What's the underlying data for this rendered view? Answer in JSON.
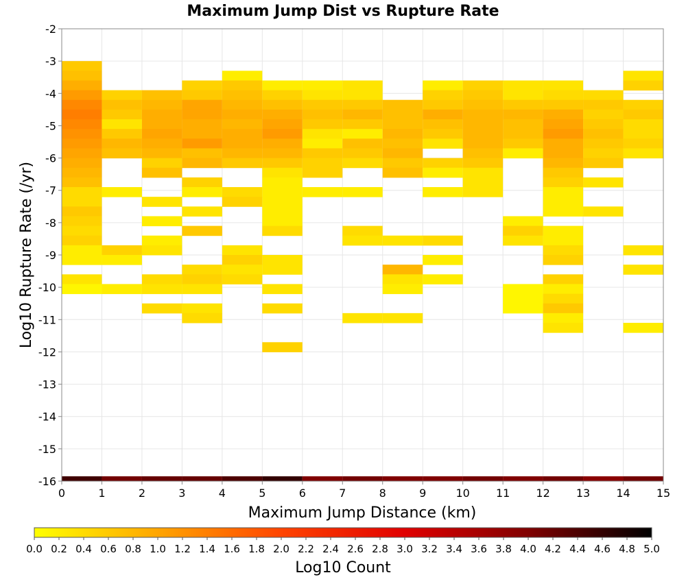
{
  "chart_data": {
    "type": "heatmap",
    "title": "Maximum Jump Dist vs Rupture Rate",
    "xlabel": "Maximum Jump Distance (km)",
    "ylabel": "Log10 Rupture Rate (/yr)",
    "xlim": [
      0,
      15
    ],
    "ylim": [
      -16,
      -2
    ],
    "x_ticks": [
      "0",
      "1",
      "2",
      "3",
      "4",
      "5",
      "6",
      "7",
      "8",
      "9",
      "10",
      "11",
      "12",
      "13",
      "14",
      "15"
    ],
    "y_ticks": [
      "-2",
      "-3",
      "-4",
      "-5",
      "-6",
      "-7",
      "-8",
      "-9",
      "-10",
      "-11",
      "-12",
      "-13",
      "-14",
      "-15",
      "-16"
    ],
    "x_bin_width": 1,
    "y_bin_height": 0.3,
    "grid": true,
    "colorbar": {
      "label": "Log10 Count",
      "range": [
        0,
        5
      ],
      "ticks": [
        "0.0",
        "0.2",
        "0.4",
        "0.6",
        "0.8",
        "1.0",
        "1.2",
        "1.4",
        "1.6",
        "1.8",
        "2.0",
        "2.2",
        "2.4",
        "2.6",
        "2.8",
        "3.0",
        "3.2",
        "3.4",
        "3.6",
        "3.8",
        "4.0",
        "4.2",
        "4.4",
        "4.6",
        "4.8",
        "5.0"
      ],
      "colors": [
        "#ffff00",
        "#ffa500",
        "#ff4400",
        "#e00000",
        "#800000",
        "#000000"
      ]
    },
    "bottom_row": {
      "y": -16,
      "values": [
        4.5,
        4.1,
        4.2,
        4.2,
        4.4,
        4.6,
        4.0,
        4.1,
        4.0,
        4.0,
        4.1,
        4.0,
        4.1,
        3.9,
        4.1
      ]
    },
    "columns": [
      {
        "x": [
          0,
          1
        ],
        "cells": [
          [
            -3.0,
            0.6
          ],
          [
            -3.3,
            0.7
          ],
          [
            -3.6,
            0.9
          ],
          [
            -3.9,
            1.1
          ],
          [
            -4.2,
            1.3
          ],
          [
            -4.5,
            1.4
          ],
          [
            -4.8,
            1.3
          ],
          [
            -5.1,
            1.2
          ],
          [
            -5.4,
            1.1
          ],
          [
            -5.7,
            1.0
          ],
          [
            -6.0,
            0.9
          ],
          [
            -6.3,
            0.8
          ],
          [
            -6.6,
            0.7
          ],
          [
            -6.9,
            0.4
          ],
          [
            -7.2,
            0.4
          ],
          [
            -7.5,
            0.6
          ],
          [
            -7.8,
            0.5
          ],
          [
            -8.1,
            0.4
          ],
          [
            -8.4,
            0.5
          ],
          [
            -8.7,
            0.2
          ],
          [
            -9.0,
            0.2
          ],
          [
            -9.6,
            0.3
          ],
          [
            -9.9,
            0.1
          ]
        ]
      },
      {
        "x": [
          1,
          2
        ],
        "cells": [
          [
            -3.9,
            0.5
          ],
          [
            -4.2,
            0.7
          ],
          [
            -4.5,
            0.6
          ],
          [
            -4.8,
            0.3
          ],
          [
            -5.1,
            0.6
          ],
          [
            -5.4,
            0.8
          ],
          [
            -5.7,
            0.7
          ],
          [
            -6.9,
            0.2
          ],
          [
            -8.7,
            0.5
          ],
          [
            -9.0,
            0.2
          ],
          [
            -9.9,
            0.2
          ]
        ]
      },
      {
        "x": [
          2,
          3
        ],
        "cells": [
          [
            -3.9,
            0.7
          ],
          [
            -4.2,
            0.8
          ],
          [
            -4.5,
            0.9
          ],
          [
            -4.8,
            0.9
          ],
          [
            -5.1,
            1.0
          ],
          [
            -5.4,
            0.9
          ],
          [
            -5.7,
            0.8
          ],
          [
            -6.0,
            0.5
          ],
          [
            -6.3,
            0.7
          ],
          [
            -7.2,
            0.3
          ],
          [
            -7.8,
            0.2
          ],
          [
            -8.4,
            0.2
          ],
          [
            -8.7,
            0.3
          ],
          [
            -9.6,
            0.4
          ],
          [
            -9.9,
            0.3
          ],
          [
            -10.5,
            0.4
          ]
        ]
      },
      {
        "x": [
          3,
          4
        ],
        "cells": [
          [
            -3.6,
            0.5
          ],
          [
            -3.9,
            0.6
          ],
          [
            -4.2,
            1.0
          ],
          [
            -4.5,
            1.0
          ],
          [
            -4.8,
            0.9
          ],
          [
            -5.1,
            0.9
          ],
          [
            -5.4,
            1.1
          ],
          [
            -5.7,
            0.7
          ],
          [
            -6.0,
            0.8
          ],
          [
            -6.6,
            0.5
          ],
          [
            -6.9,
            0.2
          ],
          [
            -7.5,
            0.3
          ],
          [
            -8.1,
            0.6
          ],
          [
            -9.3,
            0.4
          ],
          [
            -9.6,
            0.5
          ],
          [
            -9.9,
            0.3
          ],
          [
            -10.5,
            0.3
          ],
          [
            -10.8,
            0.4
          ]
        ]
      },
      {
        "x": [
          4,
          5
        ],
        "cells": [
          [
            -3.3,
            0.2
          ],
          [
            -3.6,
            0.6
          ],
          [
            -3.9,
            0.7
          ],
          [
            -4.2,
            0.8
          ],
          [
            -4.5,
            0.9
          ],
          [
            -4.8,
            0.8
          ],
          [
            -5.1,
            0.9
          ],
          [
            -5.4,
            0.9
          ],
          [
            -5.7,
            0.8
          ],
          [
            -6.0,
            0.6
          ],
          [
            -6.9,
            0.4
          ],
          [
            -7.2,
            0.5
          ],
          [
            -8.7,
            0.3
          ],
          [
            -9.0,
            0.5
          ],
          [
            -9.3,
            0.3
          ],
          [
            -9.6,
            0.4
          ]
        ]
      },
      {
        "x": [
          5,
          6
        ],
        "cells": [
          [
            -3.6,
            0.2
          ],
          [
            -3.9,
            0.5
          ],
          [
            -4.2,
            0.7
          ],
          [
            -4.5,
            0.9
          ],
          [
            -4.8,
            1.0
          ],
          [
            -5.1,
            1.1
          ],
          [
            -5.4,
            0.9
          ],
          [
            -5.7,
            0.8
          ],
          [
            -6.0,
            0.6
          ],
          [
            -6.3,
            0.3
          ],
          [
            -6.6,
            0.2
          ],
          [
            -6.9,
            0.2
          ],
          [
            -7.2,
            0.2
          ],
          [
            -7.5,
            0.2
          ],
          [
            -7.8,
            0.2
          ],
          [
            -8.1,
            0.4
          ],
          [
            -9.0,
            0.3
          ],
          [
            -9.3,
            0.3
          ],
          [
            -9.9,
            0.3
          ],
          [
            -10.5,
            0.4
          ],
          [
            -11.7,
            0.5
          ]
        ]
      },
      {
        "x": [
          6,
          7
        ],
        "cells": [
          [
            -3.6,
            0.2
          ],
          [
            -3.9,
            0.3
          ],
          [
            -4.2,
            0.6
          ],
          [
            -4.5,
            0.7
          ],
          [
            -4.8,
            0.6
          ],
          [
            -5.1,
            0.3
          ],
          [
            -5.4,
            0.2
          ],
          [
            -5.7,
            0.6
          ],
          [
            -6.0,
            0.5
          ],
          [
            -6.3,
            0.5
          ],
          [
            -6.9,
            0.2
          ]
        ]
      },
      {
        "x": [
          7,
          8
        ],
        "cells": [
          [
            -3.6,
            0.3
          ],
          [
            -3.9,
            0.3
          ],
          [
            -4.2,
            0.6
          ],
          [
            -4.5,
            0.8
          ],
          [
            -4.8,
            0.6
          ],
          [
            -5.1,
            0.2
          ],
          [
            -5.4,
            0.7
          ],
          [
            -5.7,
            0.6
          ],
          [
            -6.0,
            0.4
          ],
          [
            -6.9,
            0.2
          ],
          [
            -8.1,
            0.4
          ],
          [
            -8.4,
            0.3
          ],
          [
            -10.8,
            0.3
          ]
        ]
      },
      {
        "x": [
          8,
          9
        ],
        "cells": [
          [
            -4.2,
            0.7
          ],
          [
            -4.5,
            0.7
          ],
          [
            -4.8,
            0.7
          ],
          [
            -5.1,
            0.8
          ],
          [
            -5.4,
            0.7
          ],
          [
            -5.7,
            0.8
          ],
          [
            -6.0,
            0.6
          ],
          [
            -6.3,
            0.7
          ],
          [
            -8.4,
            0.3
          ],
          [
            -9.3,
            0.8
          ],
          [
            -9.6,
            0.3
          ],
          [
            -9.9,
            0.2
          ],
          [
            -10.8,
            0.3
          ]
        ]
      },
      {
        "x": [
          9,
          10
        ],
        "cells": [
          [
            -3.6,
            0.2
          ],
          [
            -3.9,
            0.5
          ],
          [
            -4.2,
            0.6
          ],
          [
            -4.5,
            0.9
          ],
          [
            -4.8,
            0.7
          ],
          [
            -5.1,
            0.6
          ],
          [
            -5.4,
            0.3
          ],
          [
            -6.0,
            0.5
          ],
          [
            -6.3,
            0.2
          ],
          [
            -6.9,
            0.2
          ],
          [
            -8.4,
            0.4
          ],
          [
            -9.0,
            0.2
          ],
          [
            -9.6,
            0.2
          ]
        ]
      },
      {
        "x": [
          10,
          11
        ],
        "cells": [
          [
            -3.6,
            0.5
          ],
          [
            -3.9,
            0.6
          ],
          [
            -4.2,
            0.7
          ],
          [
            -4.5,
            0.8
          ],
          [
            -4.8,
            0.8
          ],
          [
            -5.1,
            0.8
          ],
          [
            -5.4,
            0.8
          ],
          [
            -5.7,
            0.7
          ],
          [
            -6.0,
            0.6
          ],
          [
            -6.3,
            0.3
          ],
          [
            -6.6,
            0.3
          ],
          [
            -6.9,
            0.3
          ]
        ]
      },
      {
        "x": [
          11,
          12
        ],
        "cells": [
          [
            -3.6,
            0.3
          ],
          [
            -3.9,
            0.3
          ],
          [
            -4.2,
            0.6
          ],
          [
            -4.5,
            0.8
          ],
          [
            -4.8,
            0.7
          ],
          [
            -5.1,
            0.7
          ],
          [
            -5.4,
            0.6
          ],
          [
            -5.7,
            0.2
          ],
          [
            -7.8,
            0.2
          ],
          [
            -8.1,
            0.5
          ],
          [
            -8.4,
            0.3
          ],
          [
            -9.9,
            0.1
          ],
          [
            -10.2,
            0.1
          ],
          [
            -10.5,
            0.1
          ]
        ]
      },
      {
        "x": [
          12,
          13
        ],
        "cells": [
          [
            -3.6,
            0.3
          ],
          [
            -3.9,
            0.4
          ],
          [
            -4.2,
            0.6
          ],
          [
            -4.5,
            0.9
          ],
          [
            -4.8,
            1.0
          ],
          [
            -5.1,
            1.1
          ],
          [
            -5.4,
            0.9
          ],
          [
            -5.7,
            0.9
          ],
          [
            -6.0,
            0.8
          ],
          [
            -6.3,
            0.6
          ],
          [
            -6.6,
            0.5
          ],
          [
            -6.9,
            0.2
          ],
          [
            -7.2,
            0.2
          ],
          [
            -7.5,
            0.2
          ],
          [
            -8.1,
            0.2
          ],
          [
            -8.4,
            0.2
          ],
          [
            -8.7,
            0.4
          ],
          [
            -9.0,
            0.5
          ],
          [
            -9.6,
            0.5
          ],
          [
            -9.9,
            0.2
          ],
          [
            -10.2,
            0.4
          ],
          [
            -10.5,
            0.6
          ],
          [
            -10.8,
            0.2
          ],
          [
            -11.1,
            0.3
          ]
        ]
      },
      {
        "x": [
          13,
          14
        ],
        "cells": [
          [
            -3.9,
            0.4
          ],
          [
            -4.2,
            0.6
          ],
          [
            -4.5,
            0.5
          ],
          [
            -4.8,
            0.6
          ],
          [
            -5.1,
            0.7
          ],
          [
            -5.4,
            0.6
          ],
          [
            -5.7,
            0.5
          ],
          [
            -6.0,
            0.6
          ],
          [
            -6.6,
            0.3
          ],
          [
            -7.5,
            0.3
          ]
        ]
      },
      {
        "x": [
          14,
          15
        ],
        "cells": [
          [
            -3.3,
            0.3
          ],
          [
            -3.6,
            0.5
          ],
          [
            -4.2,
            0.5
          ],
          [
            -4.5,
            0.6
          ],
          [
            -4.8,
            0.4
          ],
          [
            -5.1,
            0.4
          ],
          [
            -5.4,
            0.5
          ],
          [
            -5.7,
            0.3
          ],
          [
            -8.7,
            0.3
          ],
          [
            -9.3,
            0.3
          ],
          [
            -11.1,
            0.2
          ]
        ]
      }
    ]
  }
}
